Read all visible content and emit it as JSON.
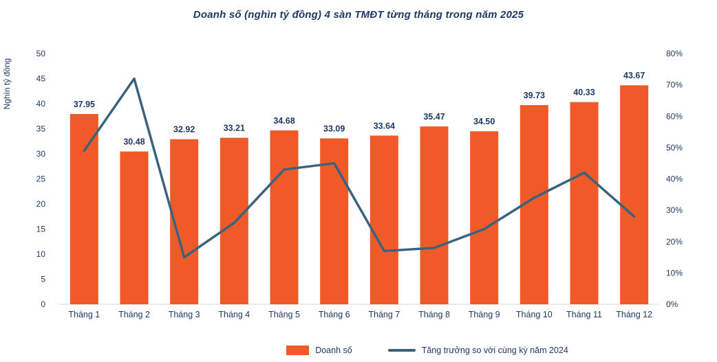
{
  "chart": {
    "title": "Doanh số (nghìn tỷ đồng) 4 sàn TMĐT từng tháng trong năm 2025",
    "y_axis_label": "Nghìn tỷ đồng",
    "legend": {
      "bar_label": "Doanh số",
      "line_label": "Tăng trưởng so với cùng kỳ năm 2024"
    }
  },
  "chart_data": {
    "type": "combo",
    "title": "Doanh số (nghìn tỷ đồng) 4 sàn TMĐT từng tháng trong năm 2025",
    "categories": [
      "Tháng 1",
      "Tháng 2",
      "Tháng 3",
      "Tháng 4",
      "Tháng 5",
      "Tháng 6",
      "Tháng 7",
      "Tháng 8",
      "Tháng 9",
      "Tháng 10",
      "Tháng 11",
      "Tháng 12"
    ],
    "series": [
      {
        "name": "Doanh số",
        "type": "bar",
        "axis": "left",
        "color": "#f05a28",
        "values": [
          37.95,
          30.48,
          32.92,
          33.21,
          34.68,
          33.09,
          33.64,
          35.47,
          34.5,
          39.73,
          40.33,
          43.67
        ],
        "labels": [
          "37.95",
          "30.48",
          "32.92",
          "33.21",
          "34.68",
          "33.09",
          "33.64",
          "35.47",
          "34.50",
          "39.73",
          "40.33",
          "43.67"
        ]
      },
      {
        "name": "Tăng trưởng so với cùng kỳ năm 2024",
        "type": "line",
        "axis": "right",
        "color": "#3a637f",
        "values": [
          49,
          72,
          15,
          26,
          43,
          45,
          17,
          18,
          24,
          34,
          42,
          28
        ]
      }
    ],
    "left_axis": {
      "label": "Nghìn tỷ đồng",
      "min": 0,
      "max": 50,
      "ticks": [
        0,
        5,
        10,
        15,
        20,
        25,
        30,
        35,
        40,
        45,
        50
      ]
    },
    "right_axis": {
      "min": 0,
      "max": 80,
      "ticks": [
        0,
        10,
        20,
        30,
        40,
        50,
        60,
        70,
        80
      ],
      "suffix": "%"
    },
    "grid": false,
    "legend_position": "bottom"
  }
}
